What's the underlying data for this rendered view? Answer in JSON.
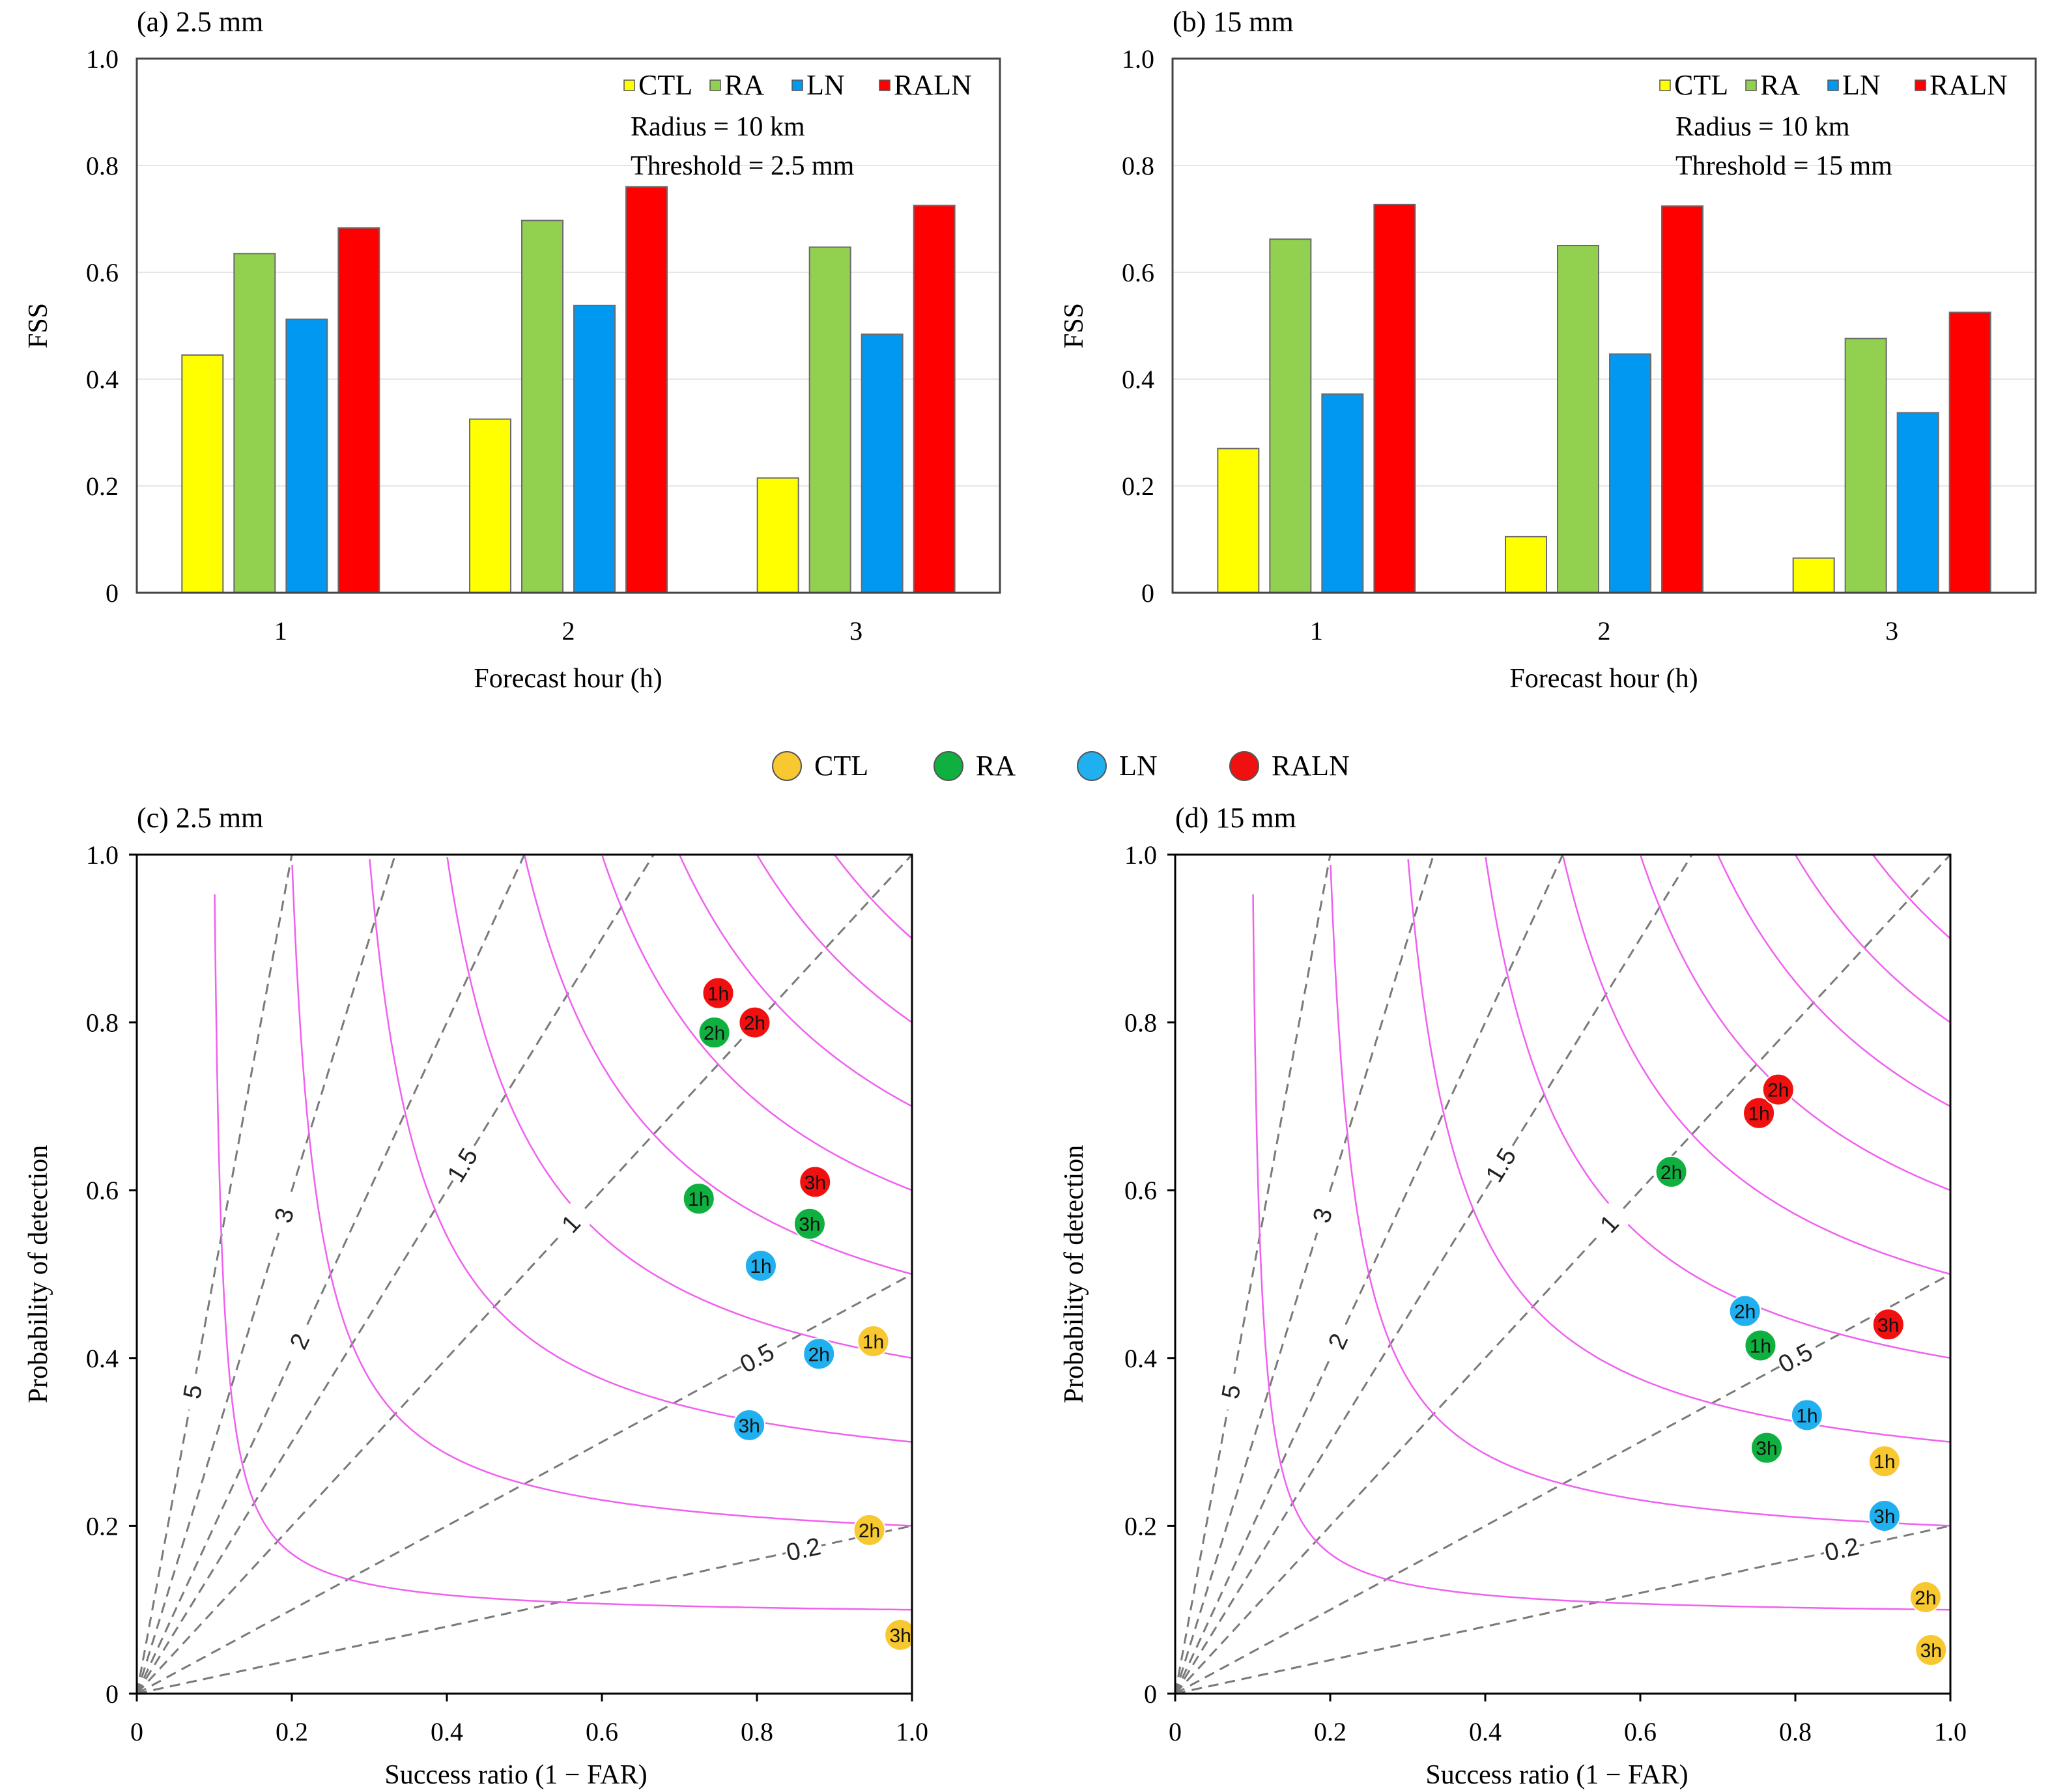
{
  "colors": {
    "CTL": "#ffff00",
    "RA": "#92d050",
    "LN": "#0098f0",
    "RALN": "#ff0000",
    "CTL_pt": "#f8c830",
    "RA_pt": "#10b040",
    "LN_pt": "#20b0f0",
    "RALN_pt": "#f01010",
    "csi_line": "#f060f0",
    "csi_text": "#e020e0",
    "bias_line": "#7a7a7a"
  },
  "chart_data": [
    {
      "type": "bar",
      "panel_title": "(a) 2.5 mm",
      "xlabel": "Forecast hour (h)",
      "ylabel": "FSS",
      "ylim": [
        0,
        1.0
      ],
      "yticks": [
        "0",
        "0.2",
        "0.4",
        "0.6",
        "0.8",
        "1.0"
      ],
      "categories": [
        "1",
        "2",
        "3"
      ],
      "series": [
        {
          "name": "CTL",
          "values": [
            0.445,
            0.325,
            0.215
          ]
        },
        {
          "name": "RA",
          "values": [
            0.635,
            0.697,
            0.647
          ]
        },
        {
          "name": "LN",
          "values": [
            0.512,
            0.538,
            0.484
          ]
        },
        {
          "name": "RALN",
          "values": [
            0.683,
            0.76,
            0.725
          ]
        }
      ],
      "annotations": [
        "Radius = 10 km",
        "Threshold = 2.5 mm"
      ],
      "legend": "top-right",
      "grid": "horizontal"
    },
    {
      "type": "bar",
      "panel_title": "(b) 15 mm",
      "xlabel": "Forecast hour (h)",
      "ylabel": "FSS",
      "ylim": [
        0,
        1.0
      ],
      "yticks": [
        "0",
        "0.2",
        "0.4",
        "0.6",
        "0.8",
        "1.0"
      ],
      "categories": [
        "1",
        "2",
        "3"
      ],
      "series": [
        {
          "name": "CTL",
          "values": [
            0.27,
            0.105,
            0.065
          ]
        },
        {
          "name": "RA",
          "values": [
            0.662,
            0.65,
            0.476
          ]
        },
        {
          "name": "LN",
          "values": [
            0.372,
            0.447,
            0.337
          ]
        },
        {
          "name": "RALN",
          "values": [
            0.727,
            0.724,
            0.525
          ]
        }
      ],
      "annotations": [
        "Radius = 10 km",
        "Threshold = 15 mm"
      ],
      "legend": "top-right",
      "grid": "horizontal"
    },
    {
      "type": "scatter",
      "panel_title": "(c) 2.5 mm",
      "xlabel": "Success ratio (1 − FAR)",
      "ylabel": "Probability of detection",
      "xlim": [
        0,
        1.0
      ],
      "ylim": [
        0,
        1.0
      ],
      "xticks": [
        "0",
        "0.2",
        "0.4",
        "0.6",
        "0.8",
        "1.0"
      ],
      "yticks": [
        "0",
        "0.2",
        "0.4",
        "0.6",
        "0.8",
        "1.0"
      ],
      "csi_contours": [
        "0.1",
        "0.2",
        "0.3",
        "0.4",
        "0.5",
        "0.6",
        "0.7",
        "0.8",
        "0.9"
      ],
      "bias_lines": [
        "5",
        "3",
        "2",
        "1.5",
        "1",
        "0.5",
        "0.2"
      ],
      "points": [
        {
          "series": "RALN",
          "label": "1h",
          "x": 0.75,
          "y": 0.835
        },
        {
          "series": "RALN",
          "label": "2h",
          "x": 0.797,
          "y": 0.8
        },
        {
          "series": "RALN",
          "label": "3h",
          "x": 0.875,
          "y": 0.61
        },
        {
          "series": "RA",
          "label": "1h",
          "x": 0.725,
          "y": 0.59
        },
        {
          "series": "RA",
          "label": "2h",
          "x": 0.745,
          "y": 0.788
        },
        {
          "series": "RA",
          "label": "3h",
          "x": 0.868,
          "y": 0.56
        },
        {
          "series": "LN",
          "label": "1h",
          "x": 0.805,
          "y": 0.51
        },
        {
          "series": "LN",
          "label": "2h",
          "x": 0.88,
          "y": 0.405
        },
        {
          "series": "LN",
          "label": "3h",
          "x": 0.79,
          "y": 0.32
        },
        {
          "series": "CTL",
          "label": "1h",
          "x": 0.95,
          "y": 0.42
        },
        {
          "series": "CTL",
          "label": "2h",
          "x": 0.945,
          "y": 0.195
        },
        {
          "series": "CTL",
          "label": "3h",
          "x": 0.985,
          "y": 0.07
        }
      ]
    },
    {
      "type": "scatter",
      "panel_title": "(d) 15 mm",
      "xlabel": "Success ratio (1 − FAR)",
      "ylabel": "Probability of detection",
      "xlim": [
        0,
        1.0
      ],
      "ylim": [
        0,
        1.0
      ],
      "xticks": [
        "0",
        "0.2",
        "0.4",
        "0.6",
        "0.8",
        "1.0"
      ],
      "yticks": [
        "0",
        "0.2",
        "0.4",
        "0.6",
        "0.8",
        "1.0"
      ],
      "csi_contours": [
        "0.1",
        "0.2",
        "0.3",
        "0.4",
        "0.5",
        "0.6",
        "0.7",
        "0.8",
        "0.9"
      ],
      "bias_lines": [
        "5",
        "3",
        "2",
        "1.5",
        "1",
        "0.5",
        "0.2"
      ],
      "points": [
        {
          "series": "RALN",
          "label": "1h",
          "x": 0.753,
          "y": 0.692
        },
        {
          "series": "RALN",
          "label": "2h",
          "x": 0.778,
          "y": 0.72
        },
        {
          "series": "RALN",
          "label": "3h",
          "x": 0.92,
          "y": 0.44
        },
        {
          "series": "RA",
          "label": "1h",
          "x": 0.755,
          "y": 0.415
        },
        {
          "series": "RA",
          "label": "2h",
          "x": 0.64,
          "y": 0.622
        },
        {
          "series": "RA",
          "label": "3h",
          "x": 0.763,
          "y": 0.293
        },
        {
          "series": "LN",
          "label": "1h",
          "x": 0.815,
          "y": 0.332
        },
        {
          "series": "LN",
          "label": "2h",
          "x": 0.735,
          "y": 0.456
        },
        {
          "series": "LN",
          "label": "3h",
          "x": 0.915,
          "y": 0.212
        },
        {
          "series": "CTL",
          "label": "1h",
          "x": 0.915,
          "y": 0.277
        },
        {
          "series": "CTL",
          "label": "2h",
          "x": 0.968,
          "y": 0.115
        },
        {
          "series": "CTL",
          "label": "3h",
          "x": 0.975,
          "y": 0.052
        }
      ]
    }
  ],
  "shared_legend": {
    "items": [
      {
        "name": "CTL",
        "color_key": "CTL_pt"
      },
      {
        "name": "RA",
        "color_key": "RA_pt"
      },
      {
        "name": "LN",
        "color_key": "LN_pt"
      },
      {
        "name": "RALN",
        "color_key": "RALN_pt"
      }
    ]
  }
}
